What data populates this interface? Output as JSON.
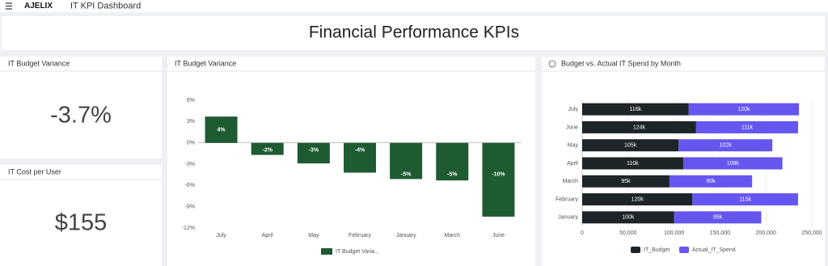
{
  "header": {
    "logo": "AJELIX",
    "title": "IT KPI Dashboard"
  },
  "page_title": "Financial Performance KPIs",
  "kpis": [
    {
      "title": "IT Budget Variance",
      "value": "-3.7%"
    },
    {
      "title": "IT Cost per User",
      "value": "$155"
    }
  ],
  "chart_data": [
    {
      "type": "bar",
      "title": "IT Budget Variance",
      "categories": [
        "July",
        "April",
        "May",
        "February",
        "January",
        "March",
        "June"
      ],
      "series": [
        {
          "name": "IT Budget Varia...",
          "color": "#1e5a32",
          "values": [
            3.7,
            -1.7,
            -2.9,
            -4.2,
            -5.1,
            -5.3,
            -10.4
          ],
          "value_labels": [
            "4%",
            "-2%",
            "-3%",
            "-4%",
            "-5%",
            "-5%",
            "-10%"
          ]
        }
      ],
      "ylim": [
        -12,
        6
      ],
      "yticks": [
        {
          "value": 6,
          "label": "6%"
        },
        {
          "value": 3,
          "label": "3%"
        },
        {
          "value": 0,
          "label": "0%"
        },
        {
          "value": -3,
          "label": "-3%"
        },
        {
          "value": -6,
          "label": "-6%"
        },
        {
          "value": -9,
          "label": "-9%"
        },
        {
          "value": -12,
          "label": "-12%"
        }
      ],
      "grid": false
    },
    {
      "type": "hbar-stacked",
      "title": "Budget vs. Actual IT Spend by Month",
      "categories": [
        "July",
        "June",
        "May",
        "April",
        "March",
        "February",
        "January"
      ],
      "series": [
        {
          "name": "IT_Budget",
          "color": "#1d2528",
          "values": [
            116000,
            124000,
            105000,
            110000,
            95000,
            120000,
            100000
          ],
          "value_labels": [
            "116k",
            "124k",
            "105k",
            "110k",
            "95k",
            "120k",
            "100k"
          ]
        },
        {
          "name": "Actual_IT_Spend",
          "color": "#6656f0",
          "values": [
            120000,
            111000,
            102000,
            108000,
            90000,
            115000,
            95000
          ],
          "value_labels": [
            "120k",
            "111k",
            "102k",
            "108k",
            "90k",
            "115k",
            "95k"
          ]
        }
      ],
      "xlim": [
        0,
        250000
      ],
      "xticks": [
        0,
        {
          "value": 50000,
          "label": "50,000"
        },
        {
          "value": 100000,
          "label": "100,000"
        },
        {
          "value": 150000,
          "label": "150,000"
        },
        {
          "value": 200000,
          "label": "200,000"
        },
        {
          "value": 250000,
          "label": "250,000"
        }
      ],
      "grid": true
    }
  ]
}
